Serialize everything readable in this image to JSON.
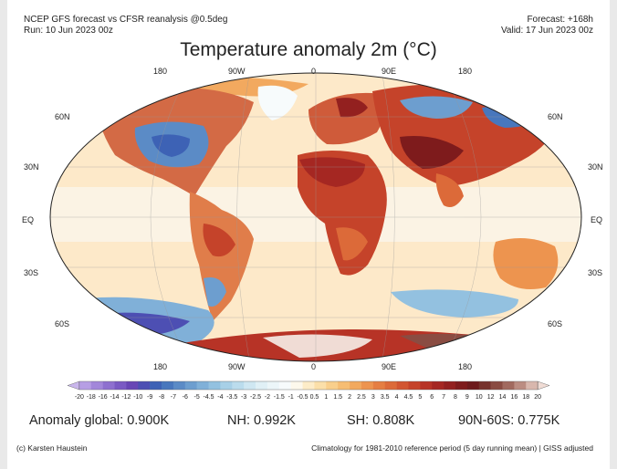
{
  "header": {
    "line1_left": "NCEP GFS forecast vs CFSR reanalysis @0.5deg",
    "line2_left": "Run: 10 Jun 2023 00z",
    "line1_right": "Forecast: +168h",
    "line2_right": "Valid: 17 Jun 2023 00z"
  },
  "title": "Temperature anomaly 2m (°C)",
  "axes": {
    "lon_top": [
      "180",
      "90W",
      "0",
      "90E",
      "180"
    ],
    "lon_bottom": [
      "180",
      "90W",
      "0",
      "90E",
      "180"
    ],
    "lat_left": [
      "60N",
      "30N",
      "EQ",
      "30S",
      "60S"
    ],
    "lat_right": [
      "60N",
      "30N",
      "EQ",
      "30S",
      "60S"
    ]
  },
  "colorbar": {
    "ticks": [
      "-20",
      "-18",
      "-16",
      "-14",
      "-12",
      "-10",
      "-9",
      "-8",
      "-7",
      "-6",
      "-5",
      "-4.5",
      "-4",
      "-3.5",
      "-3",
      "-2.5",
      "-2",
      "-1.5",
      "-1",
      "-0.5",
      "0.5",
      "1",
      "1.5",
      "2",
      "2.5",
      "3",
      "3.5",
      "4",
      "4.5",
      "5",
      "6",
      "7",
      "8",
      "9",
      "10",
      "12",
      "14",
      "16",
      "18",
      "20"
    ],
    "colors": [
      "#c9b6ec",
      "#b69ee4",
      "#a287da",
      "#8e70cf",
      "#7a5ac3",
      "#6846b5",
      "#4d4fb3",
      "#3d62b5",
      "#4877bd",
      "#5b8bc6",
      "#6d9ecf",
      "#80b0d8",
      "#93c1e0",
      "#a7d0e7",
      "#bbdced",
      "#cfe7f2",
      "#e0f0f6",
      "#ecf6f9",
      "#f7fbfc",
      "#fdf8ec",
      "#fdecc8",
      "#fbdfa9",
      "#f9cf8c",
      "#f6bd73",
      "#f2a95f",
      "#ed944f",
      "#e57e42",
      "#dc6a39",
      "#d25531",
      "#c5432a",
      "#b73326",
      "#a52722",
      "#93201f",
      "#7e1b1c",
      "#6d1a1c",
      "#76322c",
      "#8a4c42",
      "#a16a5f",
      "#bb8d82",
      "#d8b7ad",
      "#f0dcd5"
    ]
  },
  "stats": {
    "global": "Anomaly global: 0.900K",
    "nh": "NH: 0.992K",
    "sh": "SH: 0.808K",
    "band": "90N-60S: 0.775K"
  },
  "footer": {
    "left": "(c) Karsten Haustein",
    "right": "Climatology for 1981-2010 reference period (5 day running mean) | GISS adjusted"
  }
}
